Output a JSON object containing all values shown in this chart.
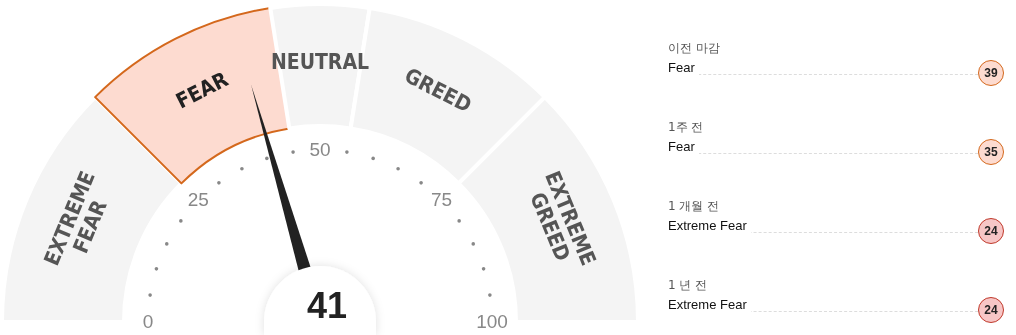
{
  "chart_data": [
    {
      "type": "donut",
      "categories": [
        "EXTREME FEAR",
        "FEAR",
        "NEUTRAL",
        "GREED",
        "EXTREME GREED"
      ],
      "values": [
        25,
        20,
        10,
        20,
        25
      ],
      "colors": [
        "#f4f4f4",
        "#fddbd0",
        "#f4f4f4",
        "#f4f4f4",
        "#f4f4f4"
      ],
      "needle": "FEAR",
      "annotations": [
        "0",
        "25",
        "50",
        "75",
        "100",
        "41"
      ]
    },
    {
      "type": "other",
      "annotations": [
        "이전 마감",
        "Fear",
        "39",
        "1주 전",
        "Fear",
        "35",
        "1 개월 전",
        "Extreme Fear",
        "24",
        "1 년 전",
        "Extreme Fear",
        "24"
      ]
    }
  ]
}
